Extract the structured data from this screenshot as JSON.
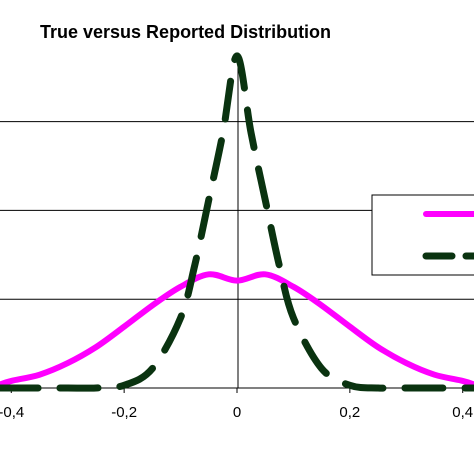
{
  "chart_data": {
    "type": "line",
    "title": "True versus Reported Distribution",
    "xlabel": "",
    "ylabel": "",
    "xlim": [
      -0.42,
      0.42
    ],
    "ylim": [
      0,
      3.75
    ],
    "x_ticks": [
      -0.4,
      -0.2,
      0,
      0.2,
      0.4
    ],
    "x_tick_labels": [
      "-0,4",
      "-0,2",
      "0",
      "0,2",
      "0,4"
    ],
    "y_gridlines": [
      0,
      1,
      2,
      3
    ],
    "grid": "horizontal",
    "legend_position": "right",
    "series": [
      {
        "color": "#ff00ff",
        "style": "solid",
        "x": [
          -0.42,
          -0.4,
          -0.35,
          -0.3,
          -0.25,
          -0.2,
          -0.15,
          -0.1,
          -0.05,
          0,
          0.05,
          0.1,
          0.15,
          0.2,
          0.25,
          0.3,
          0.35,
          0.4,
          0.42
        ],
        "values": [
          0.04,
          0.08,
          0.15,
          0.28,
          0.46,
          0.69,
          0.93,
          1.14,
          1.28,
          1.21,
          1.28,
          1.14,
          0.93,
          0.69,
          0.46,
          0.28,
          0.15,
          0.08,
          0.04
        ]
      },
      {
        "color": "#0a3310",
        "style": "dashed",
        "x": [
          -0.42,
          -0.35,
          -0.3,
          -0.25,
          -0.2,
          -0.15,
          -0.1,
          -0.075,
          -0.05,
          -0.025,
          0,
          0.025,
          0.05,
          0.075,
          0.1,
          0.15,
          0.2,
          0.25,
          0.3,
          0.35,
          0.42
        ],
        "values": [
          0,
          0,
          0,
          0,
          0.03,
          0.22,
          0.79,
          1.38,
          2.12,
          2.87,
          3.74,
          2.87,
          2.12,
          1.38,
          0.79,
          0.22,
          0.03,
          0,
          0,
          0,
          0
        ]
      }
    ]
  }
}
